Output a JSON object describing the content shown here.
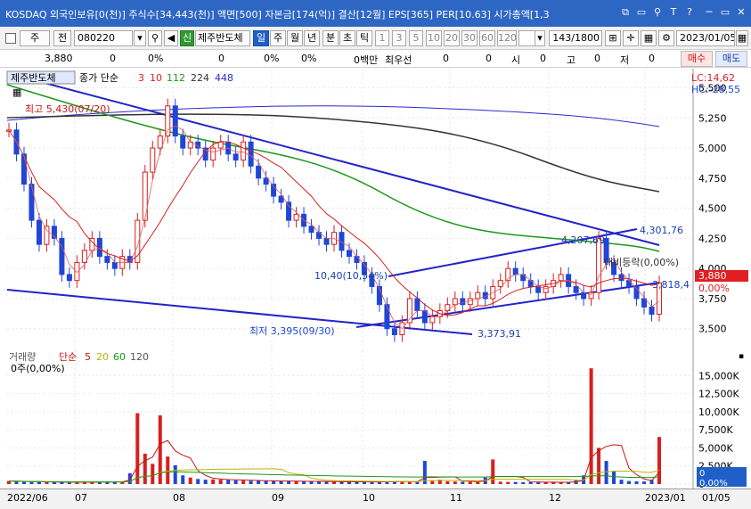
{
  "window": {
    "title": "KOSDAQ 외국인보유[0(천)] 주식수[34,443(천)] 액면[500] 자본금[174(억)] 결산[12월] EPS[365] PER[10.63] 시가총액[1,3",
    "buttons": [
      "⧉",
      "▭",
      "⚲",
      "T",
      "?",
      "─",
      "▭",
      "✕"
    ]
  },
  "toolbar": {
    "type_select": "주",
    "all_btn": "전",
    "code": "080220",
    "new_badge": "신",
    "stock_name": "제주반도체",
    "periods": [
      "일",
      "주",
      "월",
      "년",
      "분",
      "초",
      "틱"
    ],
    "intervals": [
      "1",
      "3",
      "5",
      "10",
      "20",
      "30",
      "60",
      "120"
    ],
    "count": "143",
    "total": "/1800",
    "date": "2023/01/05"
  },
  "quote": {
    "price": "3,880",
    "v1": "0",
    "p1": "0%",
    "v2": "0",
    "p2": "0%",
    "p3": "0%",
    "unit": "0백만",
    "best_label": "최우선",
    "v3": "0",
    "v4": "0",
    "open_label": "시",
    "open_val": "0",
    "high_label": "고",
    "high_val": "0",
    "low_label": "저",
    "low_val": "0",
    "buy": "매수",
    "sell": "매도"
  },
  "price_panel": {
    "name_tag": "제주반도체",
    "legend": [
      "종가 단순",
      "3",
      "10",
      "112",
      "224",
      "448"
    ],
    "lc": "LC:14,62",
    "hc": "HC:-28,55",
    "high_note": "최고 5,430(07/20)",
    "low_note": "최저 3,395(09/30)",
    "ann_1": "4,207,69",
    "ann_2": "4,301,76",
    "ann_3": "10,40(10,54%)",
    "ann_4": "3,818,4",
    "ann_5": "3,373,91",
    "ann_6": "3,880",
    "ann_7": "0,00%",
    "ann_8": "대비등락(0,00%)",
    "colors": {
      "up": "#d81e1e",
      "down": "#1f46d6",
      "ma3": "#d81e1e",
      "ma10": "#d81e1e",
      "ma112": "#1a9a1a",
      "ma224": "#333333",
      "ma448": "#2b2bd0",
      "trend": "#2323c8"
    }
  },
  "vol_panel": {
    "legend": [
      "거래량",
      "단순",
      "5",
      "20",
      "60",
      "120"
    ],
    "zero_label": "0주(0,00%)",
    "badge": "0",
    "badge_pct": "0,00%"
  },
  "chart_data": [
    {
      "type": "candlestick",
      "title": "제주반도체",
      "y_ticks": [
        "5,500",
        "5,250",
        "5,000",
        "4,750",
        "4,500",
        "4,250",
        "4,000",
        "3,750",
        "3,500"
      ],
      "y_values": [
        5500,
        5250,
        5000,
        4750,
        4500,
        4250,
        4000,
        3750,
        3500
      ],
      "ylim": [
        3350,
        5600
      ],
      "x_labels": [
        "2022/06",
        "07",
        "08",
        "09",
        "10",
        "11",
        "12",
        "2023/01"
      ],
      "series": [
        {
          "name": "종가",
          "close": [
            5150,
            4950,
            4700,
            4400,
            4200,
            4350,
            4250,
            3950,
            3900,
            4050,
            4150,
            4250,
            4100,
            4050,
            4000,
            4100,
            4050,
            4400,
            4800,
            5000,
            5100,
            5350,
            5100,
            5000,
            5050,
            5000,
            4900,
            5000,
            5050,
            4950,
            4900,
            5050,
            4850,
            4750,
            4700,
            4600,
            4550,
            4400,
            4450,
            4350,
            4300,
            4250,
            4200,
            4300,
            4150,
            4100,
            4050,
            3950,
            3850,
            3700,
            3500,
            3450,
            3550,
            3750,
            3650,
            3550,
            3600,
            3650,
            3700,
            3750,
            3700,
            3750,
            3800,
            3750,
            3850,
            3900,
            4000,
            3950,
            3900,
            3850,
            3800,
            3850,
            3900,
            3950,
            3850,
            3800,
            3750,
            3800,
            4250,
            4050,
            3950,
            3900,
            3850,
            3750,
            3680,
            3620,
            3880
          ]
        }
      ]
    },
    {
      "type": "bar",
      "title": "거래량",
      "y_ticks": [
        "15,000K",
        "12,500K",
        "10,000K",
        "7,500K",
        "5,000K",
        "2,500K",
        "0"
      ],
      "y_values": [
        15000,
        12500,
        10000,
        7500,
        5000,
        2500,
        0
      ],
      "ylim": [
        0,
        17500
      ],
      "series": [
        {
          "name": "거래량",
          "values": [
            420,
            380,
            300,
            260,
            300,
            280,
            250,
            240,
            230,
            260,
            280,
            250,
            300,
            350,
            320,
            300,
            1500,
            9800,
            4200,
            2800,
            9500,
            3800,
            2600,
            1200,
            900,
            700,
            600,
            650,
            600,
            550,
            500,
            480,
            460,
            450,
            420,
            400,
            380,
            400,
            380,
            360,
            350,
            340,
            320,
            330,
            310,
            300,
            290,
            280,
            300,
            320,
            350,
            380,
            320,
            300,
            280,
            3200,
            420,
            600,
            380,
            350,
            320,
            300,
            280,
            900,
            3400,
            320,
            300,
            280,
            260,
            280,
            260,
            250,
            240,
            230,
            250,
            600,
            1200,
            16000,
            5000,
            3200,
            1800,
            600,
            420,
            380,
            350,
            600,
            6500
          ]
        }
      ]
    }
  ],
  "date_bar": {
    "right_label": "01/05"
  }
}
